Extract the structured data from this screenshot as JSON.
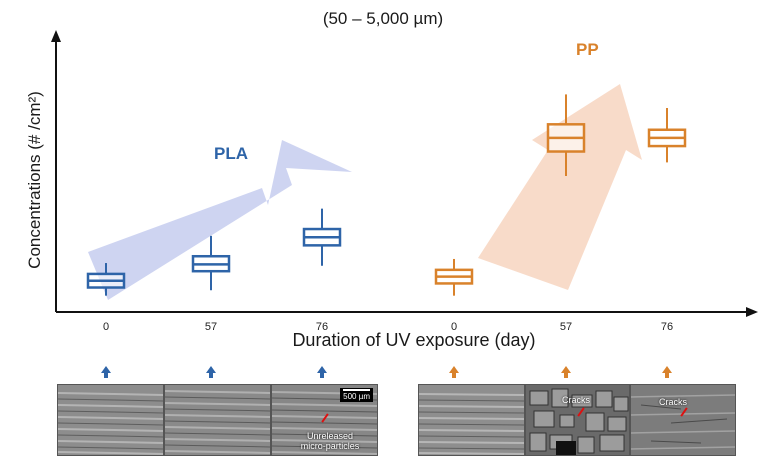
{
  "title_visible": "(50 – 5,000 µm)",
  "chart_data": {
    "type": "box",
    "title": "(50 – 5,000 µm)",
    "xlabel": "Duration of UV exposure (day)",
    "ylabel": "Concentrations (# /cm²)",
    "y_ticks": "none",
    "y_scale": "relative, unlabeled (0–1)",
    "groups": [
      {
        "name": "PLA",
        "color": "#2e64a8",
        "trend_arrow_color": "#c9cff0",
        "categories": [
          "0",
          "57",
          "76"
        ],
        "boxes": [
          {
            "x": "0",
            "whisker_low": 0.06,
            "q1": 0.09,
            "median": 0.115,
            "q3": 0.14,
            "whisker_high": 0.18
          },
          {
            "x": "57",
            "whisker_low": 0.08,
            "q1": 0.15,
            "median": 0.175,
            "q3": 0.205,
            "whisker_high": 0.28
          },
          {
            "x": "76",
            "whisker_low": 0.17,
            "q1": 0.245,
            "median": 0.275,
            "q3": 0.305,
            "whisker_high": 0.38
          }
        ]
      },
      {
        "name": "PP",
        "color": "#d9822b",
        "trend_arrow_color": "#f7d8c4",
        "categories": [
          "0",
          "57",
          "76"
        ],
        "boxes": [
          {
            "x": "0",
            "whisker_low": 0.06,
            "q1": 0.105,
            "median": 0.13,
            "q3": 0.155,
            "whisker_high": 0.195
          },
          {
            "x": "57",
            "whisker_low": 0.5,
            "q1": 0.59,
            "median": 0.64,
            "q3": 0.69,
            "whisker_high": 0.8
          },
          {
            "x": "76",
            "whisker_low": 0.55,
            "q1": 0.61,
            "median": 0.64,
            "q3": 0.67,
            "whisker_high": 0.75
          }
        ]
      }
    ]
  },
  "micrographs": {
    "scale_bar": "500 µm",
    "pla_annotation": "Unreleased\nmicro-particles",
    "pp_annotation_57": "Cracks",
    "pp_annotation_76": "Cracks"
  }
}
